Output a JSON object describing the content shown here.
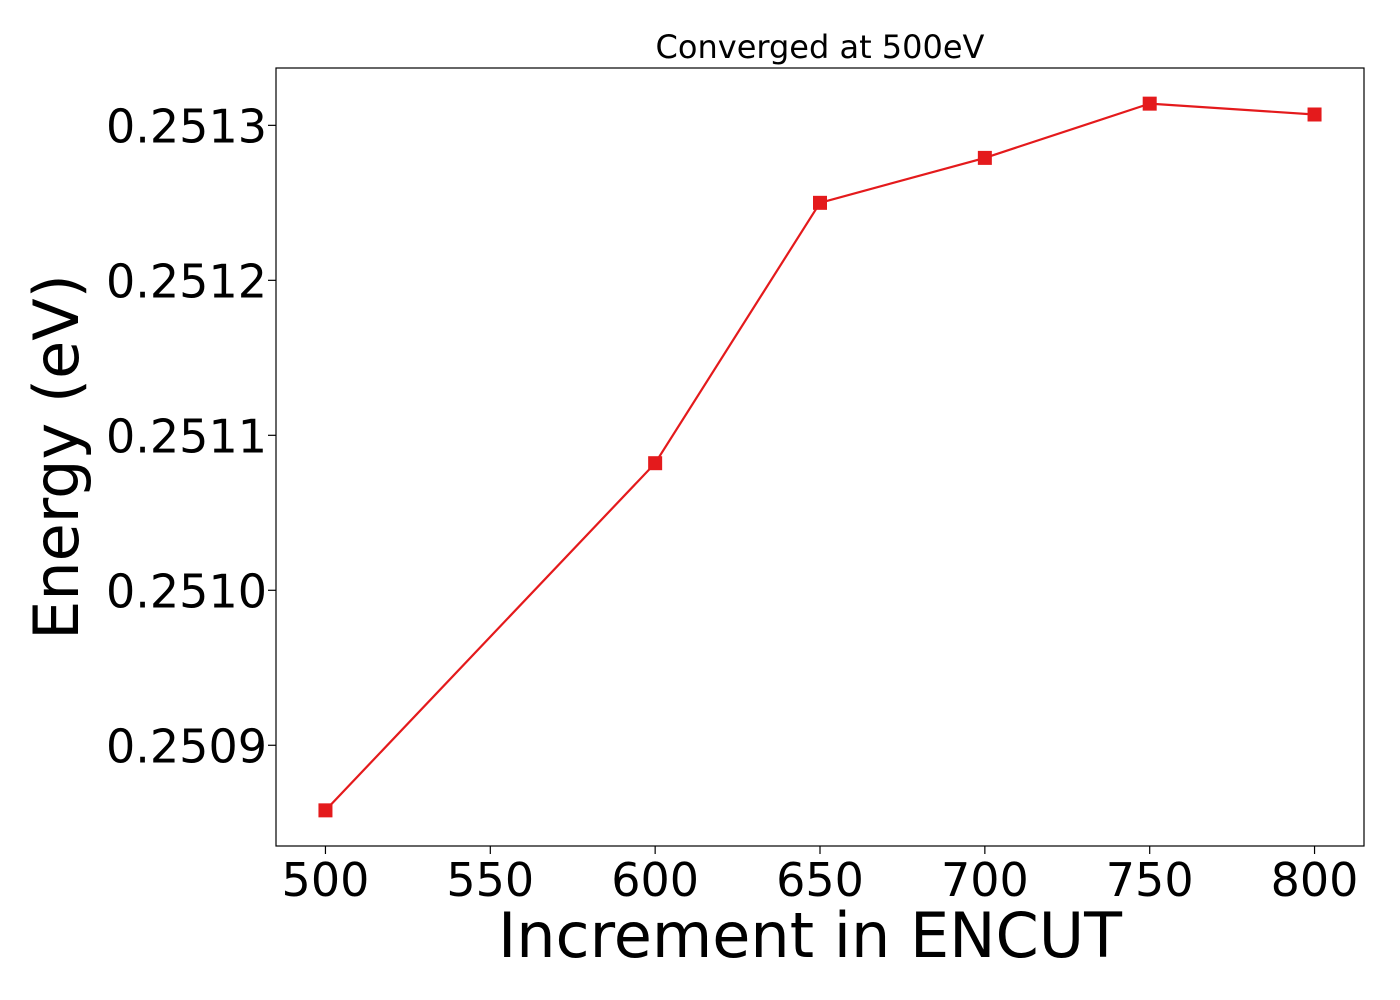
{
  "chart_data": {
    "type": "line",
    "title": "Converged at 500eV",
    "xlabel": "Increment in ENCUT",
    "ylabel": "Energy (eV)",
    "x": [
      500,
      600,
      650,
      700,
      750,
      800
    ],
    "series": [
      {
        "values": [
          0.250858,
          0.251082,
          0.25125,
          0.251279,
          0.251314,
          0.251307
        ],
        "color": "#e41a1c",
        "marker": "square"
      }
    ],
    "xlim": [
      485,
      815
    ],
    "ylim": [
      0.250835,
      0.251337
    ],
    "xticks": [
      500,
      550,
      600,
      650,
      700,
      750,
      800
    ],
    "xtick_labels": [
      "500",
      "550",
      "600",
      "650",
      "700",
      "750",
      "800"
    ],
    "yticks": [
      0.2509,
      0.251,
      0.2511,
      0.2512,
      0.2513
    ],
    "ytick_labels": [
      "0.2509",
      "0.2510",
      "0.2511",
      "0.2512",
      "0.2513"
    ],
    "grid": false,
    "legend": false
  }
}
